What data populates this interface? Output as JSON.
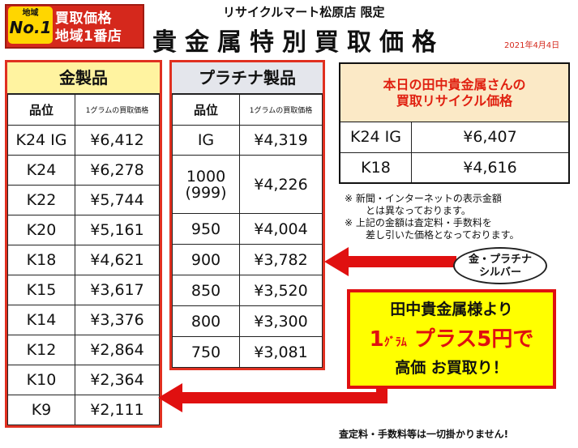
{
  "badge": {
    "area_small": "地域",
    "no1": "No.1",
    "line1": "買取価格",
    "line2": "地域1番店"
  },
  "header": {
    "store": "リサイクルマート松原店 限定",
    "title": "貴金属特別買取価格",
    "date": "2021年4月4日"
  },
  "gold": {
    "title": "金製品",
    "col_grade": "品位",
    "col_price": "1グラムの買取価格",
    "rows": [
      {
        "grade": "K24 IG",
        "price": "¥6,412"
      },
      {
        "grade": "K24",
        "price": "¥6,278"
      },
      {
        "grade": "K22",
        "price": "¥5,744"
      },
      {
        "grade": "K20",
        "price": "¥5,161"
      },
      {
        "grade": "K18",
        "price": "¥4,621"
      },
      {
        "grade": "K15",
        "price": "¥3,617"
      },
      {
        "grade": "K14",
        "price": "¥3,376"
      },
      {
        "grade": "K12",
        "price": "¥2,864"
      },
      {
        "grade": "K10",
        "price": "¥2,364"
      },
      {
        "grade": "K9",
        "price": "¥2,111"
      }
    ]
  },
  "platinum": {
    "title": "プラチナ製品",
    "col_grade": "品位",
    "col_price": "1グラムの買取価格",
    "rows": [
      {
        "grade": "IG",
        "price": "¥4,319"
      },
      {
        "grade": "1000\n(999)",
        "price": "¥4,226"
      },
      {
        "grade": "950",
        "price": "¥4,004"
      },
      {
        "grade": "900",
        "price": "¥3,782"
      },
      {
        "grade": "850",
        "price": "¥3,520"
      },
      {
        "grade": "800",
        "price": "¥3,300"
      },
      {
        "grade": "750",
        "price": "¥3,081"
      }
    ]
  },
  "tanaka": {
    "line1": "本日の田中貴金属さんの",
    "line2": "買取リサイクル価格",
    "rows": [
      {
        "grade": "K24 IG",
        "price": "¥6,407"
      },
      {
        "grade": "K18",
        "price": "¥4,616"
      }
    ]
  },
  "notes": {
    "line1": "※ 新聞・インターネットの表示金額",
    "line2": "とは異なっております。",
    "line3": "※ 上記の金額は査定料・手数料を",
    "line4": "差し引いた価格となっております。"
  },
  "bubble": {
    "line1": "金・プラチナ",
    "line2": "シルバー"
  },
  "promo": {
    "line1": "田中貴金属様より",
    "amount_prefix": "1",
    "unit": "ｸﾞﾗﾑ",
    "amount_text": "プラス5円で",
    "line3": "高価 お買取り！"
  },
  "footer": {
    "text": "査定料・手数料等は一切掛かりません!"
  },
  "colors": {
    "accent_red": "#e01010",
    "gold_header": "#fff3a0",
    "platinum_header": "#e4e6ec",
    "promo_bg": "#ffff00"
  }
}
